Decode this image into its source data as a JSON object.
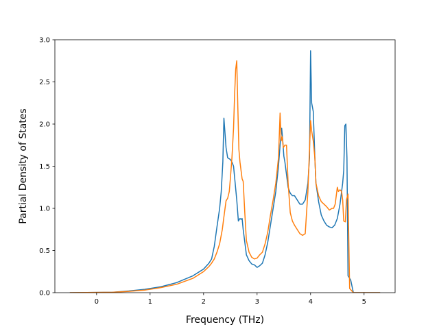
{
  "chart_data": {
    "type": "line",
    "title": "",
    "xlabel": "Frequency (THz)",
    "ylabel": "Partial Density of States",
    "xlim": [
      -0.78,
      5.58
    ],
    "ylim": [
      0.0,
      3.0
    ],
    "xticks": [
      0,
      1,
      2,
      3,
      4,
      5
    ],
    "yticks": [
      0.0,
      0.5,
      1.0,
      1.5,
      2.0,
      2.5,
      3.0
    ],
    "xtick_labels": [
      "0",
      "1",
      "2",
      "3",
      "4",
      "5"
    ],
    "ytick_labels": [
      "0.0",
      "0.5",
      "1.0",
      "1.5",
      "2.0",
      "2.5",
      "3.0"
    ],
    "grid": false,
    "legend": "none",
    "series": [
      {
        "color": "#1f77b4",
        "x": [
          -0.5,
          0.3,
          0.6,
          0.9,
          1.2,
          1.5,
          1.8,
          2.0,
          2.1,
          2.15,
          2.2,
          2.25,
          2.3,
          2.33,
          2.36,
          2.38,
          2.42,
          2.45,
          2.5,
          2.53,
          2.56,
          2.59,
          2.62,
          2.65,
          2.68,
          2.7,
          2.72,
          2.74,
          2.77,
          2.8,
          2.85,
          2.9,
          2.95,
          3.0,
          3.05,
          3.1,
          3.15,
          3.2,
          3.25,
          3.3,
          3.35,
          3.4,
          3.43,
          3.46,
          3.48,
          3.5,
          3.52,
          3.55,
          3.58,
          3.62,
          3.66,
          3.7,
          3.75,
          3.8,
          3.85,
          3.9,
          3.95,
          3.98,
          4.0,
          4.02,
          4.05,
          4.08,
          4.1,
          4.15,
          4.2,
          4.25,
          4.3,
          4.35,
          4.4,
          4.45,
          4.5,
          4.55,
          4.58,
          4.6,
          4.62,
          4.64,
          4.66,
          4.68,
          4.7,
          4.75,
          4.8,
          5.3
        ],
        "y": [
          0.0,
          0.005,
          0.02,
          0.04,
          0.07,
          0.12,
          0.2,
          0.28,
          0.35,
          0.4,
          0.55,
          0.78,
          1.0,
          1.2,
          1.55,
          2.07,
          1.72,
          1.6,
          1.58,
          1.55,
          1.5,
          1.3,
          1.1,
          0.85,
          0.88,
          0.87,
          0.88,
          0.75,
          0.6,
          0.45,
          0.38,
          0.34,
          0.33,
          0.3,
          0.32,
          0.35,
          0.45,
          0.6,
          0.8,
          1.0,
          1.2,
          1.5,
          1.75,
          1.95,
          1.8,
          1.62,
          1.55,
          1.4,
          1.25,
          1.18,
          1.15,
          1.15,
          1.1,
          1.05,
          1.05,
          1.1,
          1.3,
          1.6,
          2.87,
          2.25,
          2.15,
          1.6,
          1.3,
          1.08,
          0.92,
          0.85,
          0.8,
          0.78,
          0.77,
          0.8,
          0.88,
          1.05,
          1.2,
          1.3,
          1.45,
          1.98,
          2.0,
          1.6,
          0.2,
          0.15,
          0.0,
          0.0
        ]
      },
      {
        "color": "#ff7f0e",
        "x": [
          -0.5,
          0.3,
          0.6,
          0.9,
          1.2,
          1.5,
          1.8,
          2.0,
          2.1,
          2.15,
          2.2,
          2.25,
          2.3,
          2.35,
          2.38,
          2.42,
          2.45,
          2.48,
          2.5,
          2.53,
          2.56,
          2.58,
          2.6,
          2.62,
          2.64,
          2.66,
          2.68,
          2.7,
          2.72,
          2.74,
          2.77,
          2.8,
          2.85,
          2.9,
          2.95,
          3.0,
          3.05,
          3.1,
          3.15,
          3.2,
          3.25,
          3.3,
          3.35,
          3.4,
          3.43,
          3.45,
          3.47,
          3.49,
          3.52,
          3.55,
          3.58,
          3.62,
          3.66,
          3.7,
          3.75,
          3.8,
          3.85,
          3.9,
          3.95,
          3.98,
          4.0,
          4.02,
          4.05,
          4.08,
          4.1,
          4.15,
          4.2,
          4.25,
          4.3,
          4.35,
          4.4,
          4.43,
          4.46,
          4.5,
          4.52,
          4.55,
          4.58,
          4.6,
          4.62,
          4.65,
          4.67,
          4.7,
          4.73,
          4.8,
          5.3
        ],
        "y": [
          0.0,
          0.005,
          0.015,
          0.03,
          0.06,
          0.1,
          0.17,
          0.25,
          0.31,
          0.35,
          0.4,
          0.48,
          0.58,
          0.75,
          0.9,
          1.09,
          1.12,
          1.2,
          1.35,
          1.6,
          1.95,
          2.35,
          2.65,
          2.75,
          2.2,
          1.7,
          1.55,
          1.45,
          1.35,
          1.32,
          0.95,
          0.62,
          0.48,
          0.42,
          0.4,
          0.41,
          0.45,
          0.48,
          0.58,
          0.72,
          0.92,
          1.1,
          1.3,
          1.6,
          2.13,
          1.8,
          1.85,
          1.72,
          1.75,
          1.75,
          1.3,
          0.95,
          0.85,
          0.8,
          0.75,
          0.7,
          0.68,
          0.7,
          1.2,
          1.7,
          2.04,
          1.92,
          1.8,
          1.6,
          1.3,
          1.15,
          1.08,
          1.05,
          1.02,
          0.98,
          1.0,
          1.0,
          1.05,
          1.25,
          1.2,
          1.22,
          1.2,
          1.1,
          0.85,
          0.84,
          1.1,
          1.17,
          0.05,
          0.0,
          0.0
        ]
      }
    ]
  }
}
